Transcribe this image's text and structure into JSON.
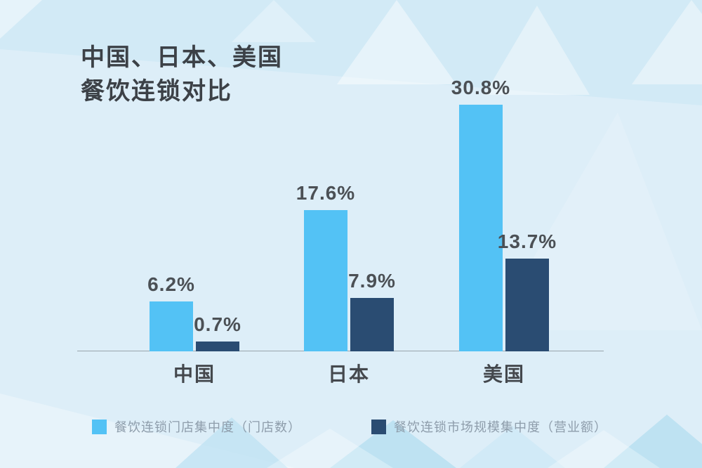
{
  "page": {
    "title_line1": "中国、日本、美国",
    "title_line2": "餐饮连锁对比"
  },
  "chart_data": {
    "type": "bar",
    "title": "中国、日本、美国餐饮连锁对比",
    "categories": [
      "中国",
      "日本",
      "美国"
    ],
    "series": [
      {
        "name": "餐饮连锁门店集中度（门店数）",
        "color": "#53c2f5",
        "values": [
          6.2,
          17.6,
          30.8
        ],
        "labels": [
          "6.2%",
          "17.6%",
          "30.8%"
        ]
      },
      {
        "name": "餐饮连锁市场规模集中度（营业额）",
        "color": "#2a4c72",
        "values": [
          0.7,
          7.9,
          13.7
        ],
        "labels": [
          "0.7%",
          "7.9%",
          "13.7%"
        ]
      }
    ],
    "value_unit": "%",
    "xlabel": "",
    "ylabel": "",
    "ylim": [
      0,
      35
    ],
    "grid": false,
    "legend_position": "bottom"
  },
  "colors": {
    "background": "#ddeef8",
    "background_triangle_dark": "#c2e3f3",
    "background_triangle_light": "#ffffff",
    "series_light_blue": "#53c2f5",
    "series_dark_navy": "#2a4c72",
    "title_text": "#3c4147",
    "value_text": "#4b5055",
    "category_text": "#44484d",
    "legend_text": "#8e9dab",
    "axis_line": "#98a4ad"
  }
}
